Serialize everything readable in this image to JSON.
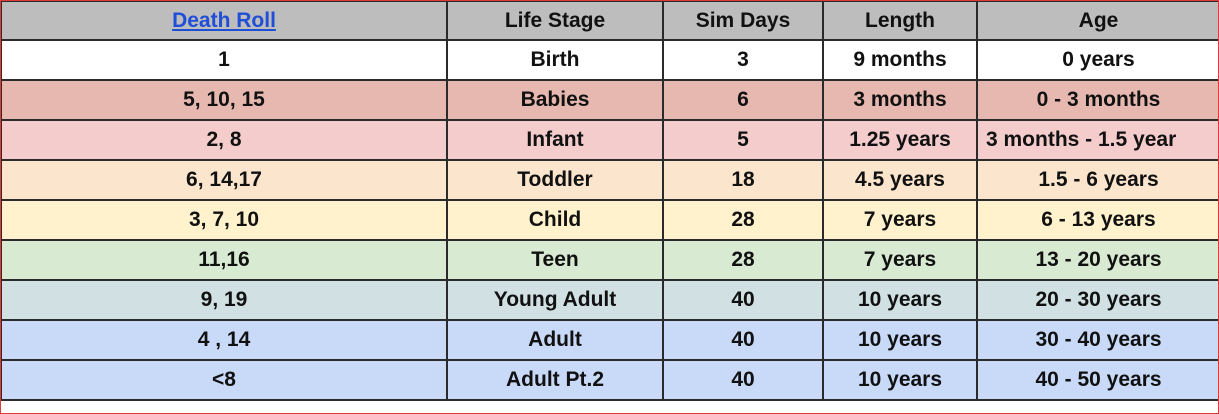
{
  "table": {
    "headers": [
      "Death Roll",
      "Life Stage",
      "Sim Days",
      "Length",
      "Age"
    ],
    "rows": [
      {
        "cells": [
          "1",
          "Birth",
          "3",
          "9 months",
          "0 years"
        ],
        "color": "#ffffff"
      },
      {
        "cells": [
          "5, 10, 15",
          "Babies",
          "6",
          "3 months",
          "0 - 3 months"
        ],
        "color": "#e6b8b0"
      },
      {
        "cells": [
          "2, 8",
          "Infant",
          "5",
          "1.25 years",
          "3 months - 1.5 year"
        ],
        "color": "#f4cccc"
      },
      {
        "cells": [
          "6, 14,17",
          "Toddler",
          "18",
          "4.5 years",
          "1.5 - 6 years"
        ],
        "color": "#fce5cd"
      },
      {
        "cells": [
          "3, 7, 10",
          "Child",
          "28",
          "7 years",
          "6 - 13 years"
        ],
        "color": "#fff2cc"
      },
      {
        "cells": [
          "11,16",
          "Teen",
          "28",
          "7 years",
          "13 - 20 years"
        ],
        "color": "#d9ead3"
      },
      {
        "cells": [
          "9, 19",
          "Young Adult",
          "40",
          "10 years",
          "20 - 30 years"
        ],
        "color": "#d0e0e3"
      },
      {
        "cells": [
          "4 , 14",
          "Adult",
          "40",
          "10 years",
          "30 - 40 years"
        ],
        "color": "#c9daf8"
      },
      {
        "cells": [
          "<8",
          "Adult Pt.2",
          "40",
          "10 years",
          "40 - 50 years"
        ],
        "color": "#c9daf8"
      }
    ],
    "header_color": "#bdbdbd",
    "link_color": "#1f4fd6"
  }
}
